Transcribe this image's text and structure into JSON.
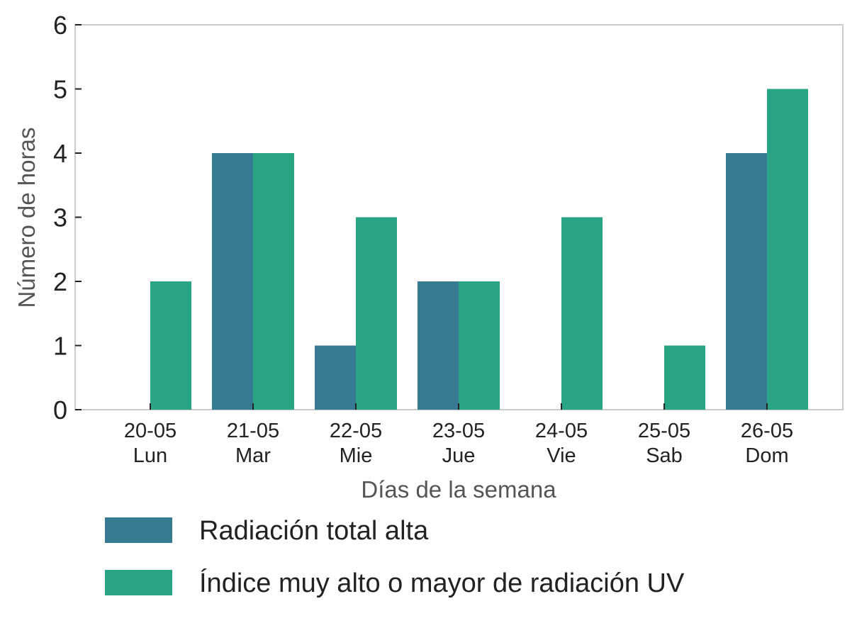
{
  "chart_data": {
    "type": "bar",
    "xlabel": "Días de la semana",
    "ylabel": "Número de horas",
    "ylim": [
      0,
      6
    ],
    "yticks": [
      0,
      1,
      2,
      3,
      4,
      5,
      6
    ],
    "grid": false,
    "legend_position": "bottom",
    "categories": [
      {
        "date": "20-05",
        "day": "Lun"
      },
      {
        "date": "21-05",
        "day": "Mar"
      },
      {
        "date": "22-05",
        "day": "Mie"
      },
      {
        "date": "23-05",
        "day": "Jue"
      },
      {
        "date": "24-05",
        "day": "Vie"
      },
      {
        "date": "25-05",
        "day": "Sab"
      },
      {
        "date": "26-05",
        "day": "Dom"
      }
    ],
    "series": [
      {
        "name": "Radiación total alta",
        "color": "#367a94",
        "values": [
          0,
          4,
          1,
          2,
          0,
          0,
          4
        ]
      },
      {
        "name": "Índice muy alto o mayor de radiación UV",
        "color": "#27a585",
        "values": [
          2,
          4,
          3,
          2,
          3,
          1,
          5
        ]
      }
    ]
  }
}
